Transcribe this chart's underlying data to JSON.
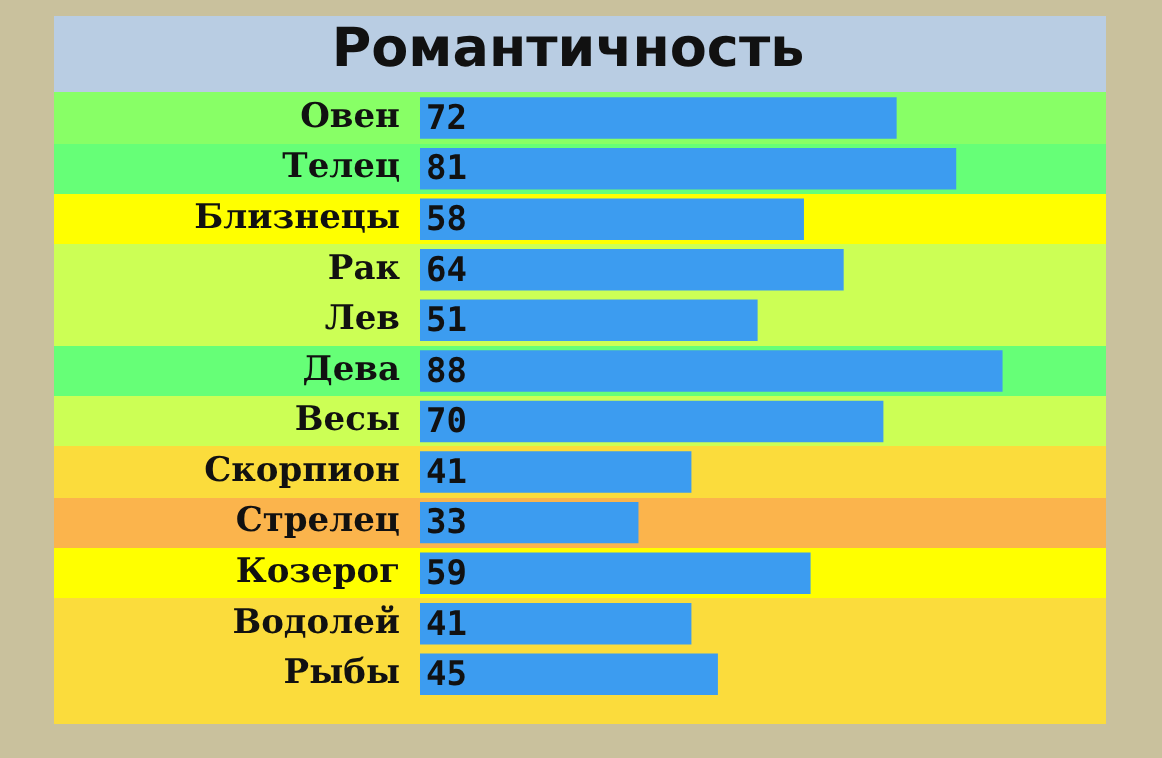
{
  "chart_data": {
    "type": "bar",
    "orientation": "horizontal",
    "title": "Романтичность",
    "categories": [
      "Овен",
      "Телец",
      "Близнецы",
      "Рак",
      "Лев",
      "Дева",
      "Весы",
      "Скорпион",
      "Стрелец",
      "Козерог",
      "Водолей",
      "Рыбы"
    ],
    "values": [
      72,
      81,
      58,
      64,
      51,
      88,
      70,
      41,
      33,
      59,
      41,
      45
    ],
    "color": "#3c9cf0",
    "data_labels": true
  }
}
